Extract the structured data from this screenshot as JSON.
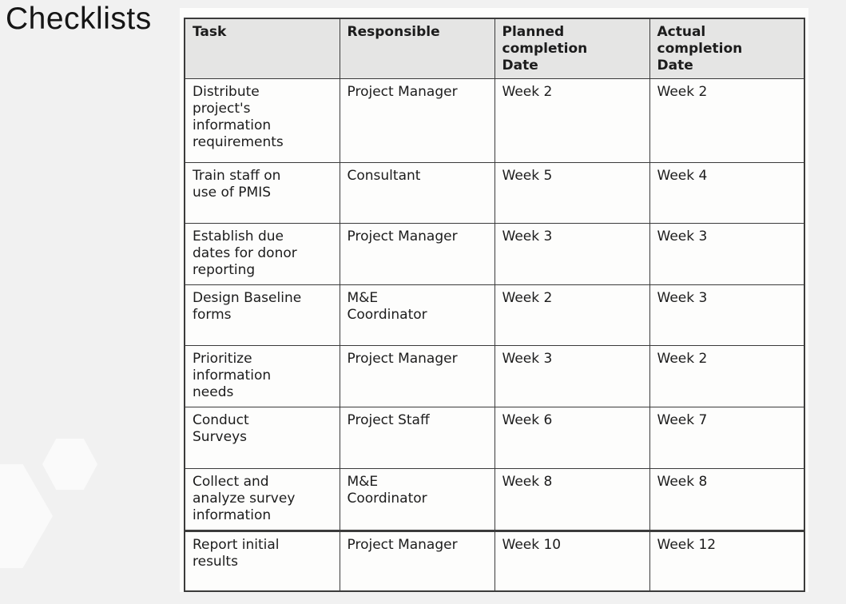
{
  "page": {
    "title": "Checklists"
  },
  "colors": {
    "page_bg": "#f1f1f1",
    "panel_bg": "#fdfdfc",
    "header_fill": "#e5e5e4",
    "border": "#3b3b3b",
    "text": "#1c1c1c",
    "title_text": "#151515",
    "hexagon": "#fafafa"
  },
  "table": {
    "columns": [
      {
        "key": "task",
        "label": "Task"
      },
      {
        "key": "responsible",
        "label": "Responsible"
      },
      {
        "key": "planned",
        "label": "Planned\ncompletion\nDate"
      },
      {
        "key": "actual",
        "label": "Actual\ncompletion\nDate"
      }
    ],
    "rows": [
      {
        "task": "Distribute\nproject's\ninformation\nrequirements",
        "responsible": "Project Manager",
        "planned": "Week 2",
        "actual": "Week 2"
      },
      {
        "task": "Train staff on\nuse of PMIS",
        "responsible": "Consultant",
        "planned": "Week 5",
        "actual": "Week 4"
      },
      {
        "task": "Establish due\ndates for donor\nreporting",
        "responsible": "Project Manager",
        "planned": "Week 3",
        "actual": "Week 3"
      },
      {
        "task": "Design Baseline\nforms",
        "responsible": "M&E\nCoordinator",
        "planned": "Week 2",
        "actual": "Week 3"
      },
      {
        "task": "Prioritize\ninformation\nneeds",
        "responsible": "Project Manager",
        "planned": "Week 3",
        "actual": "Week 2"
      },
      {
        "task": "Conduct\nSurveys",
        "responsible": "Project Staff",
        "planned": "Week 6",
        "actual": "Week 7"
      },
      {
        "task": "Collect and\nanalyze survey\ninformation",
        "responsible": "M&E\nCoordinator",
        "planned": "Week 8",
        "actual": "Week 8"
      },
      {
        "task": "Report initial\nresults",
        "responsible": "Project Manager",
        "planned": "Week 10",
        "actual": "Week 12"
      }
    ]
  }
}
